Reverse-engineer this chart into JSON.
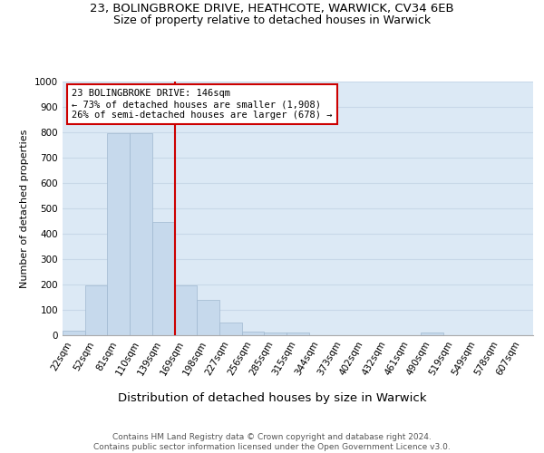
{
  "title1": "23, BOLINGBROKE DRIVE, HEATHCOTE, WARWICK, CV34 6EB",
  "title2": "Size of property relative to detached houses in Warwick",
  "xlabel": "Distribution of detached houses by size in Warwick",
  "ylabel": "Number of detached properties",
  "categories": [
    "22sqm",
    "52sqm",
    "81sqm",
    "110sqm",
    "139sqm",
    "169sqm",
    "198sqm",
    "227sqm",
    "256sqm",
    "285sqm",
    "315sqm",
    "344sqm",
    "373sqm",
    "402sqm",
    "432sqm",
    "461sqm",
    "490sqm",
    "519sqm",
    "549sqm",
    "578sqm",
    "607sqm"
  ],
  "values": [
    17,
    195,
    795,
    795,
    445,
    195,
    140,
    50,
    15,
    10,
    10,
    0,
    0,
    0,
    0,
    0,
    10,
    0,
    0,
    0,
    0
  ],
  "bar_color": "#c6d9ec",
  "bar_edge_color": "#a0b8d0",
  "vline_x_idx": 4.5,
  "vline_color": "#cc0000",
  "annotation_text": "23 BOLINGBROKE DRIVE: 146sqm\n← 73% of detached houses are smaller (1,908)\n26% of semi-detached houses are larger (678) →",
  "annotation_box_color": "white",
  "annotation_box_edge": "#cc0000",
  "ylim": [
    0,
    1000
  ],
  "yticks": [
    0,
    100,
    200,
    300,
    400,
    500,
    600,
    700,
    800,
    900,
    1000
  ],
  "grid_color": "#c8d8e8",
  "bg_color": "#dce9f5",
  "footer": "Contains HM Land Registry data © Crown copyright and database right 2024.\nContains public sector information licensed under the Open Government Licence v3.0.",
  "title1_fontsize": 9.5,
  "title2_fontsize": 9,
  "xlabel_fontsize": 9.5,
  "ylabel_fontsize": 8,
  "tick_fontsize": 7.5,
  "footer_fontsize": 6.5,
  "annot_fontsize": 7.5
}
